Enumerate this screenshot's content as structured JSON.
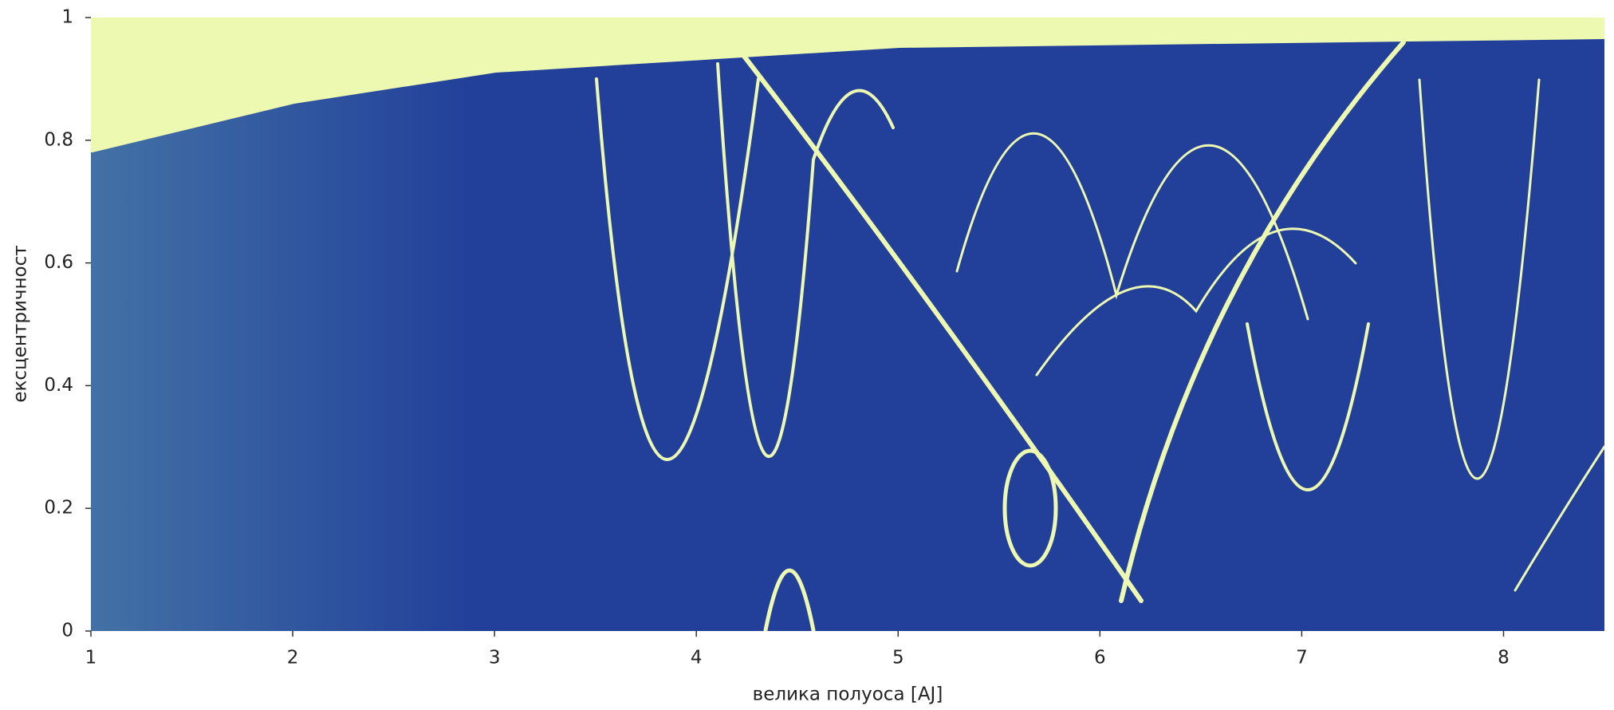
{
  "chart_data": {
    "type": "heatmap",
    "xlabel": "велика полуоса [AJ]",
    "ylabel": "ексцентричност",
    "xlim": [
      1,
      8.5
    ],
    "ylim": [
      0,
      1
    ],
    "xticks": [
      1,
      2,
      3,
      4,
      5,
      6,
      7,
      8
    ],
    "yticks": [
      0,
      0.2,
      0.4,
      0.6,
      0.8,
      1
    ],
    "colormap": [
      "#22409a",
      "#edf8b1"
    ]
  }
}
